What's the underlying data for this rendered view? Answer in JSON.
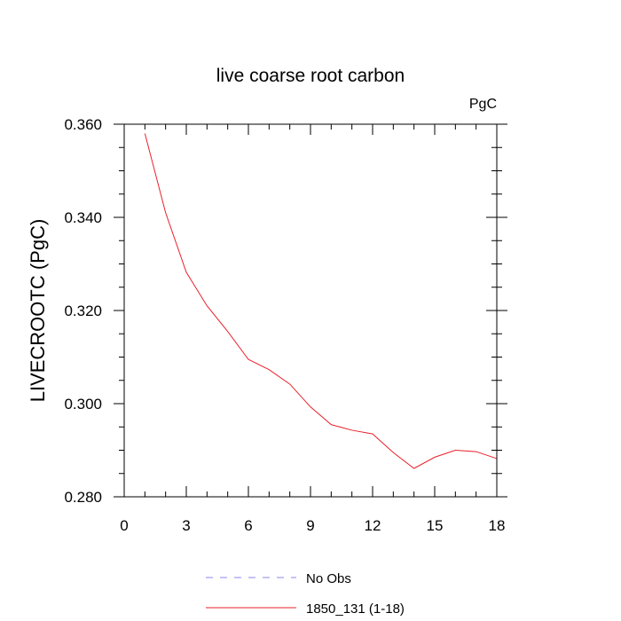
{
  "chart_data": {
    "type": "line",
    "title": "live coarse root carbon",
    "units_label": "PgC",
    "xlabel": "",
    "ylabel": "LIVECROOTC  (PgC)",
    "xlim": [
      0,
      18
    ],
    "ylim": [
      0.28,
      0.36
    ],
    "x_major_ticks": [
      0,
      3,
      6,
      9,
      12,
      15,
      18
    ],
    "x_tick_labels": [
      "0",
      "3",
      "6",
      "9",
      "12",
      "15",
      "18"
    ],
    "y_major_ticks": [
      0.28,
      0.3,
      0.32,
      0.34,
      0.36
    ],
    "y_tick_labels": [
      "0.280",
      "0.300",
      "0.320",
      "0.340",
      "0.360"
    ],
    "grid": false,
    "legend_position": "bottom",
    "series": [
      {
        "name": "No Obs",
        "color": "#8a8aee",
        "dash": "dashed",
        "x": [],
        "values": []
      },
      {
        "name": "1850_131 (1-18)",
        "color": "#e8202a",
        "dash": "solid",
        "x": [
          1,
          2,
          3,
          4,
          5,
          6,
          7,
          8,
          9,
          10,
          11,
          12,
          13,
          14,
          15,
          16,
          17,
          18
        ],
        "values": [
          0.358,
          0.341,
          0.3282,
          0.321,
          0.3155,
          0.3095,
          0.3073,
          0.3042,
          0.2993,
          0.2955,
          0.2943,
          0.2935,
          0.2895,
          0.2861,
          0.2885,
          0.29,
          0.2897,
          0.2882
        ]
      }
    ]
  }
}
